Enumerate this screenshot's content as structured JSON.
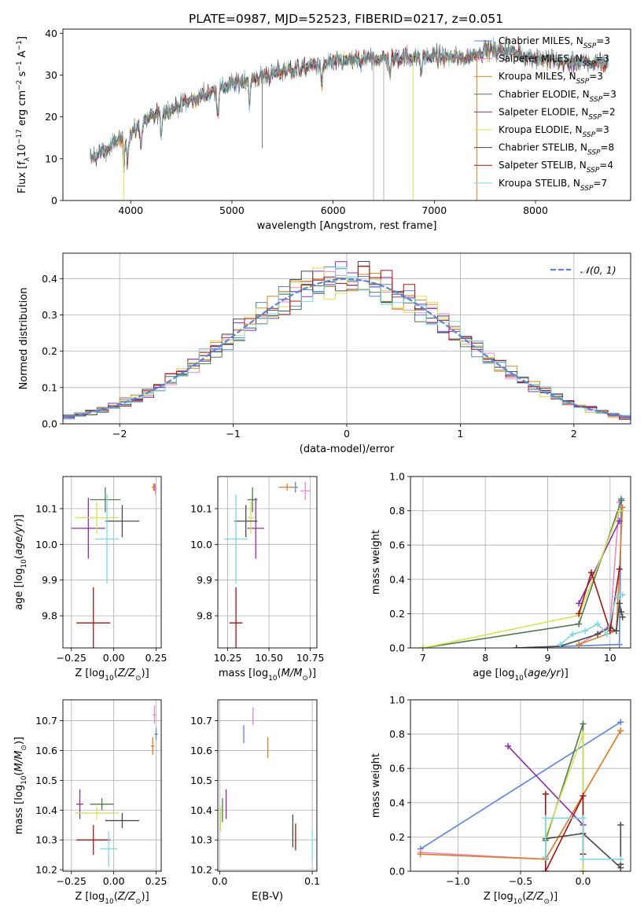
{
  "figure": {
    "title": "PLATE=0987, MJD=52523, FIBERID=0217, z=0.051"
  },
  "chart_data": [
    {
      "id": "spectrum",
      "type": "line",
      "title": "PLATE=0987, MJD=52523, FIBERID=0217, z=0.051",
      "xlabel": "wavelength [Angstrom, rest frame]",
      "ylabel": "Flux [f_λ 10^-17 erg cm^-2 s^-1 A^-1]",
      "xlim": [
        3330,
        8940
      ],
      "ylim": [
        0,
        41
      ],
      "xticks": [
        4000,
        5000,
        6000,
        7000,
        8000
      ],
      "yticks": [
        0,
        10,
        20,
        30,
        40
      ],
      "grid": false,
      "legend_position": "upper-right",
      "legend": [
        {
          "label": "Chabrier MILES, N",
          "sub": "SSP",
          "tail": "=3",
          "color": "#5b84d9"
        },
        {
          "label": "Salpeter MILES, N",
          "sub": "SSP",
          "tail": "=3",
          "color": "#e989c6"
        },
        {
          "label": "Kroupa MILES, N",
          "sub": "SSP",
          "tail": "=3",
          "color": "#d9812a"
        },
        {
          "label": "Chabrier ELODIE, N",
          "sub": "SSP",
          "tail": "=3",
          "color": "#4e7a4e"
        },
        {
          "label": "Salpeter ELODIE, N",
          "sub": "SSP",
          "tail": "=2",
          "color": "#8b2fa8"
        },
        {
          "label": "Kroupa ELODIE, N",
          "sub": "SSP",
          "tail": "=3",
          "color": "#d4e157"
        },
        {
          "label": "Chabrier STELIB, N",
          "sub": "SSP",
          "tail": "=8",
          "color": "#4a4a4a"
        },
        {
          "label": "Salpeter STELIB, N",
          "sub": "SSP",
          "tail": "=4",
          "color": "#a31515"
        },
        {
          "label": "Kroupa STELIB, N",
          "sub": "SSP",
          "tail": "=7",
          "color": "#7fd6e0"
        }
      ],
      "continuum_anchors": [
        [
          3600,
          10
        ],
        [
          3750,
          12
        ],
        [
          3900,
          15
        ],
        [
          4000,
          16
        ],
        [
          4200,
          20
        ],
        [
          4500,
          23
        ],
        [
          5000,
          28
        ],
        [
          5500,
          31
        ],
        [
          6000,
          33
        ],
        [
          6500,
          34
        ],
        [
          7000,
          34.5
        ],
        [
          7300,
          34
        ],
        [
          7500,
          36
        ],
        [
          7700,
          36
        ],
        [
          8000,
          34
        ],
        [
          8300,
          33
        ],
        [
          8600,
          33
        ],
        [
          8720,
          33
        ]
      ],
      "xrange": [
        3600,
        8720
      ]
    },
    {
      "id": "residuals",
      "type": "step-histogram",
      "xlabel": "(data-model)/error",
      "ylabel": "Normed distribution",
      "xlim": [
        -2.5,
        2.5
      ],
      "ylim": [
        0,
        0.47
      ],
      "xticks": [
        -2,
        -1,
        0,
        1,
        2
      ],
      "yticks": [
        0.0,
        0.1,
        0.2,
        0.3,
        0.4
      ],
      "grid": true,
      "bin_width": 0.1,
      "legend": [
        {
          "label": "𝒩(0, 1)",
          "color": "#5b84d9",
          "style": "dashed"
        }
      ],
      "legend_position": "upper-right"
    },
    {
      "id": "age-vs-Z",
      "type": "errorbar",
      "xlabel": "Z [log10(Z/Z⊙)]",
      "ylabel": "age [log10(age/yr)]",
      "xlim": [
        -0.3,
        0.28
      ],
      "ylim": [
        9.71,
        10.19
      ],
      "xticks": [
        -0.25,
        0.0,
        0.25
      ],
      "yticks": [
        9.8,
        9.9,
        10.0,
        10.1
      ],
      "grid": true,
      "points": [
        {
          "color": "#5b84d9",
          "x": 0.24,
          "xerr": 0.01,
          "y": 10.16,
          "yerr": 0.01
        },
        {
          "color": "#e989c6",
          "x": 0.245,
          "xerr": 0.01,
          "y": 10.155,
          "yerr": 0.015
        },
        {
          "color": "#d9812a",
          "x": 0.235,
          "xerr": 0.01,
          "y": 10.16,
          "yerr": 0.01
        },
        {
          "color": "#4e7a4e",
          "x": -0.05,
          "xerr": 0.09,
          "y": 10.125,
          "yerr": 0.035
        },
        {
          "color": "#8b2fa8",
          "x": -0.15,
          "xerr": 0.1,
          "y": 10.045,
          "yerr": 0.085
        },
        {
          "color": "#d4e157",
          "x": -0.1,
          "xerr": 0.13,
          "y": 10.075,
          "yerr": 0.045
        },
        {
          "color": "#4a4a4a",
          "x": 0.05,
          "xerr": 0.1,
          "y": 10.065,
          "yerr": 0.045
        },
        {
          "color": "#a31515",
          "x": -0.12,
          "xerr": 0.1,
          "y": 9.78,
          "yerr": 0.1
        },
        {
          "color": "#7fd6e0",
          "x": -0.04,
          "xerr": 0.07,
          "y": 10.015,
          "yerr": 0.125
        }
      ]
    },
    {
      "id": "age-vs-mass",
      "type": "errorbar",
      "xlabel": "mass [log10(M/M⊙)]",
      "xlim": [
        10.19,
        10.79
      ],
      "ylim": [
        9.71,
        10.19
      ],
      "xticks": [
        10.25,
        10.5,
        10.75
      ],
      "yticks": [
        9.8,
        9.9,
        10.0,
        10.1
      ],
      "grid": true,
      "points": [
        {
          "color": "#5b84d9",
          "x": 10.66,
          "xerr": 0.015,
          "y": 10.16,
          "yerr": 0.015
        },
        {
          "color": "#e989c6",
          "x": 10.72,
          "xerr": 0.03,
          "y": 10.15,
          "yerr": 0.025
        },
        {
          "color": "#d9812a",
          "x": 10.61,
          "xerr": 0.05,
          "y": 10.16,
          "yerr": 0.01
        },
        {
          "color": "#4e7a4e",
          "x": 10.4,
          "xerr": 0.03,
          "y": 10.125,
          "yerr": 0.035
        },
        {
          "color": "#8b2fa8",
          "x": 10.42,
          "xerr": 0.05,
          "y": 10.045,
          "yerr": 0.085
        },
        {
          "color": "#d4e157",
          "x": 10.39,
          "xerr": 0.02,
          "y": 10.075,
          "yerr": 0.045
        },
        {
          "color": "#4a4a4a",
          "x": 10.36,
          "xerr": 0.07,
          "y": 10.065,
          "yerr": 0.045
        },
        {
          "color": "#a31515",
          "x": 10.3,
          "xerr": 0.04,
          "y": 9.78,
          "yerr": 0.1
        },
        {
          "color": "#7fd6e0",
          "x": 10.3,
          "xerr": 0.07,
          "y": 10.015,
          "yerr": 0.125
        }
      ]
    },
    {
      "id": "weight-vs-age",
      "type": "line",
      "xlabel": "age [log10(age/yr)]",
      "ylabel": "mass weight",
      "xlim": [
        6.8,
        10.33
      ],
      "ylim": [
        0,
        1.0
      ],
      "xticks": [
        7,
        8,
        9,
        10
      ],
      "yticks": [
        0.0,
        0.2,
        0.4,
        0.6,
        0.8,
        1.0
      ],
      "grid": true,
      "series": [
        {
          "color": "#5b84d9",
          "x": [
            8.5,
            10.15,
            10.18
          ],
          "y": [
            0.0,
            0.02,
            0.87
          ]
        },
        {
          "color": "#e989c6",
          "x": [
            9.5,
            10.0,
            10.15
          ],
          "y": [
            0.02,
            0.13,
            0.85
          ]
        },
        {
          "color": "#d9812a",
          "x": [
            9.5,
            10.1,
            10.2
          ],
          "y": [
            0.02,
            0.1,
            0.82
          ]
        },
        {
          "color": "#4e7a4e",
          "x": [
            7.0,
            9.5,
            10.18
          ],
          "y": [
            0.0,
            0.14,
            0.86
          ]
        },
        {
          "color": "#8b2fa8",
          "x": [
            9.5,
            10.15
          ],
          "y": [
            0.26,
            0.74
          ]
        },
        {
          "color": "#d4e157",
          "x": [
            7.0,
            9.5,
            10.15
          ],
          "y": [
            0.0,
            0.19,
            0.8
          ]
        },
        {
          "color": "#4a4a4a",
          "x": [
            8.5,
            9.2,
            9.8,
            10.0,
            10.1,
            10.15,
            10.18,
            10.2
          ],
          "y": [
            0.0,
            0.01,
            0.08,
            0.12,
            0.1,
            0.26,
            0.21,
            0.18
          ]
        },
        {
          "color": "#a31515",
          "x": [
            9.5,
            9.7,
            10.0,
            10.15
          ],
          "y": [
            0.2,
            0.44,
            0.1,
            0.46
          ]
        },
        {
          "color": "#7fd6e0",
          "x": [
            9.2,
            9.4,
            9.6,
            9.8,
            9.95,
            10.1,
            10.2
          ],
          "y": [
            0.02,
            0.08,
            0.1,
            0.14,
            0.08,
            0.3,
            0.31
          ]
        }
      ]
    },
    {
      "id": "mass-vs-Z",
      "type": "errorbar",
      "xlabel": "Z [log10(Z/Z⊙)]",
      "ylabel": "mass [log10(M/M⊙)]",
      "xlim": [
        -0.3,
        0.28
      ],
      "ylim": [
        10.195,
        10.77
      ],
      "xticks": [
        -0.25,
        0.0,
        0.25
      ],
      "yticks": [
        10.2,
        10.3,
        10.4,
        10.5,
        10.6,
        10.7
      ],
      "grid": true,
      "points": [
        {
          "color": "#5b84d9",
          "x": 0.25,
          "xerr": 0.01,
          "y": 10.655,
          "yerr": 0.02
        },
        {
          "color": "#e989c6",
          "x": 0.24,
          "xerr": 0.01,
          "y": 10.72,
          "yerr": 0.03
        },
        {
          "color": "#d9812a",
          "x": 0.23,
          "xerr": 0.01,
          "y": 10.615,
          "yerr": 0.03
        },
        {
          "color": "#4e7a4e",
          "x": -0.07,
          "xerr": 0.07,
          "y": 10.42,
          "yerr": 0.02
        },
        {
          "color": "#8b2fa8",
          "x": -0.2,
          "xerr": 0.02,
          "y": 10.42,
          "yerr": 0.05
        },
        {
          "color": "#d4e157",
          "x": -0.1,
          "xerr": 0.13,
          "y": 10.39,
          "yerr": 0.02
        },
        {
          "color": "#4a4a4a",
          "x": 0.05,
          "xerr": 0.1,
          "y": 10.365,
          "yerr": 0.025
        },
        {
          "color": "#a31515",
          "x": -0.12,
          "xerr": 0.1,
          "y": 10.3,
          "yerr": 0.05
        },
        {
          "color": "#7fd6e0",
          "x": -0.03,
          "xerr": 0.05,
          "y": 10.27,
          "yerr": 0.06
        }
      ]
    },
    {
      "id": "mass-vs-EBV",
      "type": "errorbar",
      "xlabel": "E(B-V)",
      "xlim": [
        -0.002,
        0.105
      ],
      "ylim": [
        10.195,
        10.77
      ],
      "xticks": [
        0.0,
        0.1
      ],
      "yticks": [
        10.2,
        10.3,
        10.4,
        10.5,
        10.6,
        10.7
      ],
      "grid": true,
      "points": [
        {
          "color": "#5b84d9",
          "x": 0.026,
          "y": 10.655,
          "yerr": 0.03
        },
        {
          "color": "#e989c6",
          "x": 0.036,
          "y": 10.715,
          "yerr": 0.03
        },
        {
          "color": "#d9812a",
          "x": 0.052,
          "y": 10.61,
          "yerr": 0.035
        },
        {
          "color": "#4e7a4e",
          "x": 0.003,
          "y": 10.4,
          "yerr": 0.04
        },
        {
          "color": "#8b2fa8",
          "x": 0.007,
          "y": 10.42,
          "yerr": 0.05
        },
        {
          "color": "#d4e157",
          "x": 0.001,
          "y": 10.37,
          "yerr": 0.04
        },
        {
          "color": "#4a4a4a",
          "x": 0.079,
          "y": 10.33,
          "yerr": 0.055
        },
        {
          "color": "#a31515",
          "x": 0.082,
          "y": 10.31,
          "yerr": 0.045
        },
        {
          "color": "#7fd6e0",
          "x": 0.1,
          "y": 10.28,
          "yerr": 0.05
        }
      ]
    },
    {
      "id": "weight-vs-Z",
      "type": "line",
      "xlabel": "Z [log10(Z/Z⊙)]",
      "ylabel": "mass weight",
      "xlim": [
        -1.38,
        0.38
      ],
      "ylim": [
        0,
        1.0
      ],
      "xticks": [
        -1.0,
        -0.5,
        0.0
      ],
      "yticks": [
        0.0,
        0.2,
        0.4,
        0.6,
        0.8,
        1.0
      ],
      "grid": true,
      "series": [
        {
          "color": "#5b84d9",
          "x": [
            -1.3,
            0.3
          ],
          "y": [
            0.13,
            0.87
          ]
        },
        {
          "color": "#e989c6",
          "x": [
            -1.3,
            -0.3,
            0.3
          ],
          "y": [
            0.11,
            0.07,
            0.82
          ]
        },
        {
          "color": "#d9812a",
          "x": [
            -1.3,
            -0.3,
            0.3
          ],
          "y": [
            0.1,
            0.07,
            0.82
          ]
        },
        {
          "color": "#4e7a4e",
          "x": [
            -0.3,
            0.0,
            0.0
          ],
          "y": [
            0.18,
            0.86,
            0.0
          ]
        },
        {
          "color": "#8b2fa8",
          "x": [
            -0.6,
            0.0
          ],
          "y": [
            0.73,
            0.27
          ]
        },
        {
          "color": "#d4e157",
          "x": [
            -0.3,
            0.0,
            0.0
          ],
          "y": [
            0.2,
            0.8,
            0.0
          ]
        },
        {
          "color": "#4a4a4a",
          "x": [
            -0.3,
            -0.3,
            0.0,
            0.3,
            0.3,
            0.3
          ],
          "y": [
            0.08,
            0.19,
            0.22,
            0.02,
            0.27,
            0.04
          ]
        },
        {
          "color": "#a31515",
          "x": [
            -0.3,
            -0.3,
            0.0,
            0.0
          ],
          "y": [
            0.45,
            0.0,
            0.44,
            0.1
          ]
        },
        {
          "color": "#7fd6e0",
          "x": [
            -0.3,
            -0.3,
            0.0,
            0.0,
            0.3
          ],
          "y": [
            0.08,
            0.31,
            0.31,
            0.07,
            0.07
          ]
        }
      ]
    }
  ]
}
